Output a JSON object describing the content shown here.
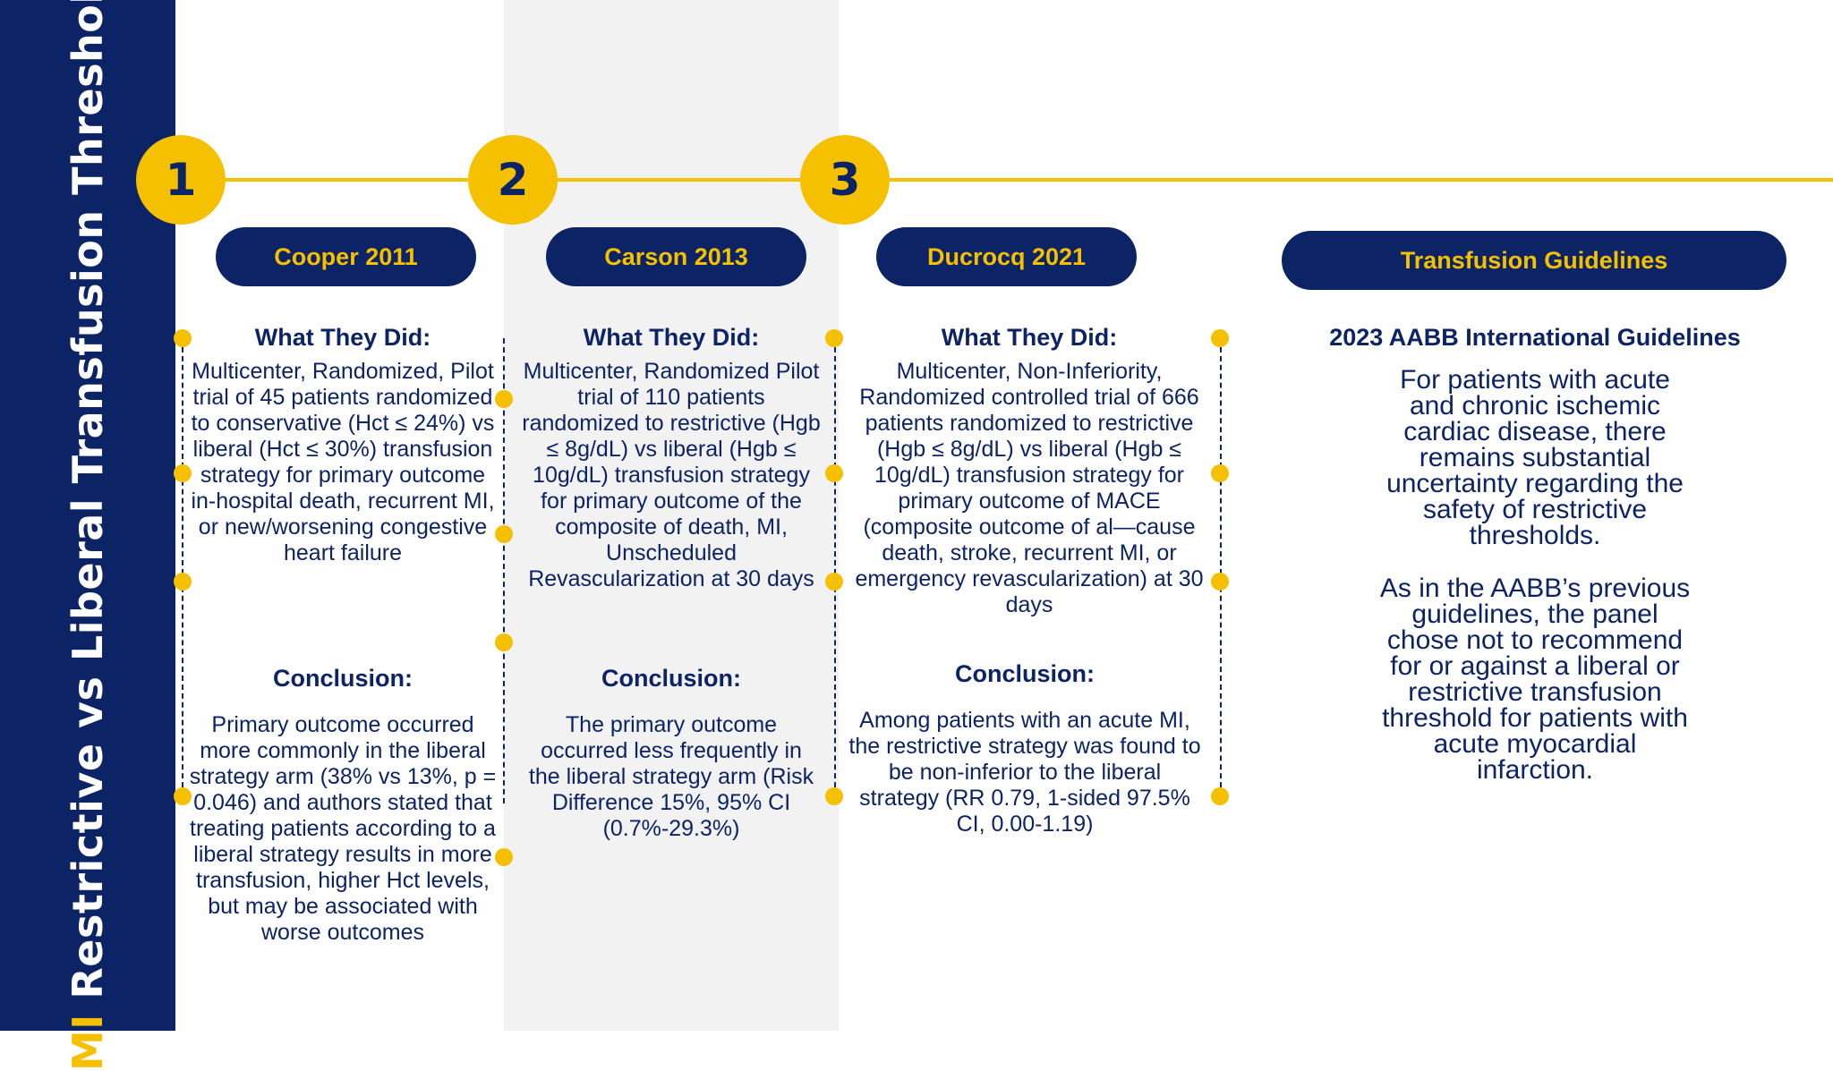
{
  "sidebar": {
    "title_accent": "MI",
    "title_rest": "Restrictive vs Liberal Transfusion Threshold"
  },
  "timeline": {
    "numbers": [
      "1",
      "2",
      "3"
    ]
  },
  "columns": [
    {
      "pill": "Cooper 2011",
      "what_heading": "What They Did:",
      "what_text": "Multicenter, Randomized, Pilot trial of 45 patients randomized to conservative (Hct ≤ 24%) vs liberal (Hct ≤ 30%) transfusion strategy for primary outcome in-hospital death, recurrent MI, or new/worsening congestive heart failure",
      "conclusion_heading": "Conclusion:",
      "conclusion_text": "Primary outcome occurred more commonly in the liberal strategy arm (38% vs 13%, p = 0.046) and authors stated that treating patients according to a liberal strategy results in more transfusion, higher Hct levels, but may be associated with worse outcomes"
    },
    {
      "pill": "Carson 2013",
      "what_heading": "What They Did:",
      "what_text": "Multicenter, Randomized Pilot trial of 110 patients randomized to restrictive (Hgb ≤ 8g/dL) vs liberal (Hgb ≤ 10g/dL) transfusion strategy for primary outcome of the composite of death, MI, Unscheduled Revascularization at 30 days",
      "conclusion_heading": "Conclusion:",
      "conclusion_text": "The primary outcome occurred less frequently in the liberal strategy arm (Risk Difference 15%, 95% CI (0.7%-29.3%)"
    },
    {
      "pill": "Ducrocq 2021",
      "what_heading": "What They Did:",
      "what_text": "Multicenter, Non-Inferiority, Randomized controlled trial of 666 patients randomized to restrictive (Hgb ≤ 8g/dL) vs liberal (Hgb ≤ 10g/dL) transfusion strategy for primary outcome of MACE (composite outcome of al—cause death, stroke, recurrent MI, or emergency revascularization) at 30 days",
      "conclusion_heading": "Conclusion:",
      "conclusion_text": "Among patients with an acute MI, the restrictive strategy was found to be non-inferior to the liberal strategy (RR 0.79, 1-sided 97.5% CI, 0.00-1.19)"
    }
  ],
  "guidelines": {
    "pill": "Transfusion Guidelines",
    "heading": "2023 AABB International Guidelines",
    "paragraph1": "For patients with acute and chronic ischemic cardiac disease, there remains substantial uncertainty regarding the safety of restrictive thresholds.",
    "paragraph2": "As in the AABB’s previous guidelines, the panel chose not to recommend for or against a liberal or restrictive transfusion threshold for patients with acute myocardial infarction."
  },
  "colors": {
    "navy": "#0c2366",
    "gold": "#f5c000",
    "shade": "#f2f2f2"
  }
}
